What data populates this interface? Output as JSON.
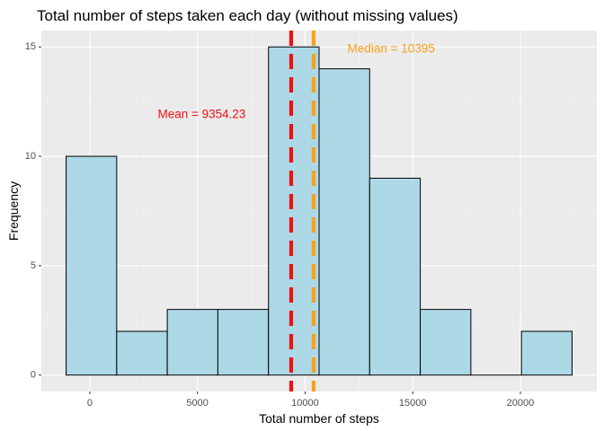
{
  "chart_data": {
    "type": "bar",
    "title": "Total number of steps taken each day (without missing values)",
    "xlabel": "Total number of steps",
    "ylabel": "Frequency",
    "xlim": [
      -2250,
      23550
    ],
    "ylim": [
      -0.75,
      15.75
    ],
    "x_ticks": [
      0,
      5000,
      10000,
      15000,
      20000
    ],
    "x_tick_labels": [
      "0",
      "5000",
      "10000",
      "15000",
      "20000"
    ],
    "y_ticks": [
      0,
      5,
      10,
      15
    ],
    "y_tick_labels": [
      "0",
      "5",
      "10",
      "15"
    ],
    "bins": [
      {
        "x0": -1100,
        "x1": 1250,
        "count": 10
      },
      {
        "x0": 1250,
        "x1": 3600,
        "count": 2
      },
      {
        "x0": 3600,
        "x1": 5950,
        "count": 3
      },
      {
        "x0": 5950,
        "x1": 8300,
        "count": 3
      },
      {
        "x0": 8300,
        "x1": 10650,
        "count": 15
      },
      {
        "x0": 10650,
        "x1": 13000,
        "count": 14
      },
      {
        "x0": 13000,
        "x1": 15350,
        "count": 9
      },
      {
        "x0": 15350,
        "x1": 17700,
        "count": 3
      },
      {
        "x0": 17700,
        "x1": 20050,
        "count": 0
      },
      {
        "x0": 20050,
        "x1": 22400,
        "count": 2
      }
    ],
    "vlines": [
      {
        "name": "Mean",
        "x": 9354.23,
        "color": "#ee1111",
        "label": "Mean = 9354.23",
        "label_x": 5200,
        "label_y": 11.9
      },
      {
        "name": "Median",
        "x": 10395,
        "color": "#f8a21a",
        "label": "Median = 10395",
        "label_x": 14000,
        "label_y": 14.9
      }
    ],
    "bar_fill": "#add8e6",
    "bar_stroke": "#000000",
    "panel_background": "#ebebeb",
    "grid": true
  }
}
